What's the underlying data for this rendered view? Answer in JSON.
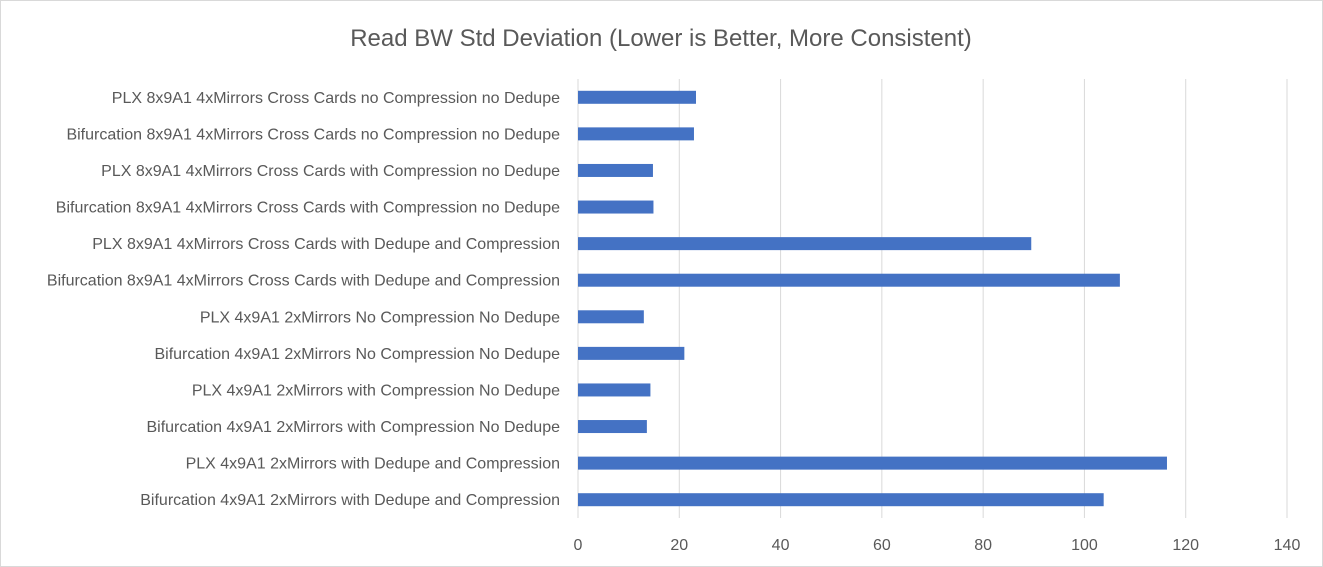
{
  "chart_data": {
    "type": "bar",
    "orientation": "horizontal",
    "title": "Read BW Std Deviation (Lower is Better, More Consistent)",
    "xlabel": "",
    "ylabel": "",
    "xlim": [
      0,
      140
    ],
    "ticks": [
      0,
      20,
      40,
      60,
      80,
      100,
      120,
      140
    ],
    "grid": true,
    "legend": "none",
    "bar_color": "#4472C4",
    "categories": [
      "PLX 8x9A1 4xMirrors Cross Cards no Compression no Dedupe",
      "Bifurcation 8x9A1 4xMirrors Cross Cards no Compression no Dedupe",
      "PLX 8x9A1 4xMirrors Cross Cards with Compression no Dedupe",
      "Bifurcation 8x9A1 4xMirrors Cross Cards with Compression no Dedupe",
      "PLX 8x9A1 4xMirrors Cross Cards with Dedupe and Compression",
      "Bifurcation 8x9A1 4xMirrors Cross Cards with Dedupe and Compression",
      "PLX 4x9A1 2xMirrors No Compression No Dedupe",
      "Bifurcation 4x9A1 2xMirrors No Compression No Dedupe",
      "PLX 4x9A1 2xMirrors with Compression No Dedupe",
      "Bifurcation 4x9A1 2xMirrors with Compression No Dedupe",
      "PLX 4x9A1 2xMirrors with Dedupe and Compression",
      "Bifurcation 4x9A1 2xMirrors with Dedupe and Compression"
    ],
    "values": [
      23.3,
      22.9,
      14.8,
      14.9,
      89.5,
      107.0,
      13.0,
      21.0,
      14.3,
      13.6,
      116.3,
      103.8
    ]
  }
}
